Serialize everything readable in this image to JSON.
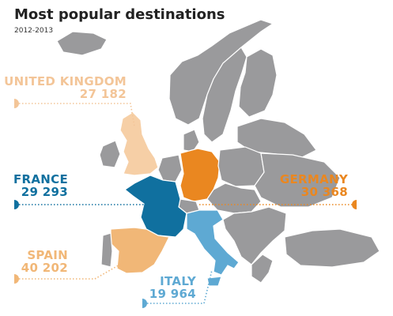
{
  "title": "Most popular destinations",
  "subtitle": "2012-2013",
  "destinations": [
    {
      "name": "UNITED KINGDOM",
      "value": "27 182"
    },
    {
      "name": "FRANCE",
      "value": "29 293"
    },
    {
      "name": "GERMANY",
      "value": "30 368"
    },
    {
      "name": "SPAIN",
      "value": "40 202"
    },
    {
      "name": "ITALY",
      "value": "19 964"
    }
  ]
}
